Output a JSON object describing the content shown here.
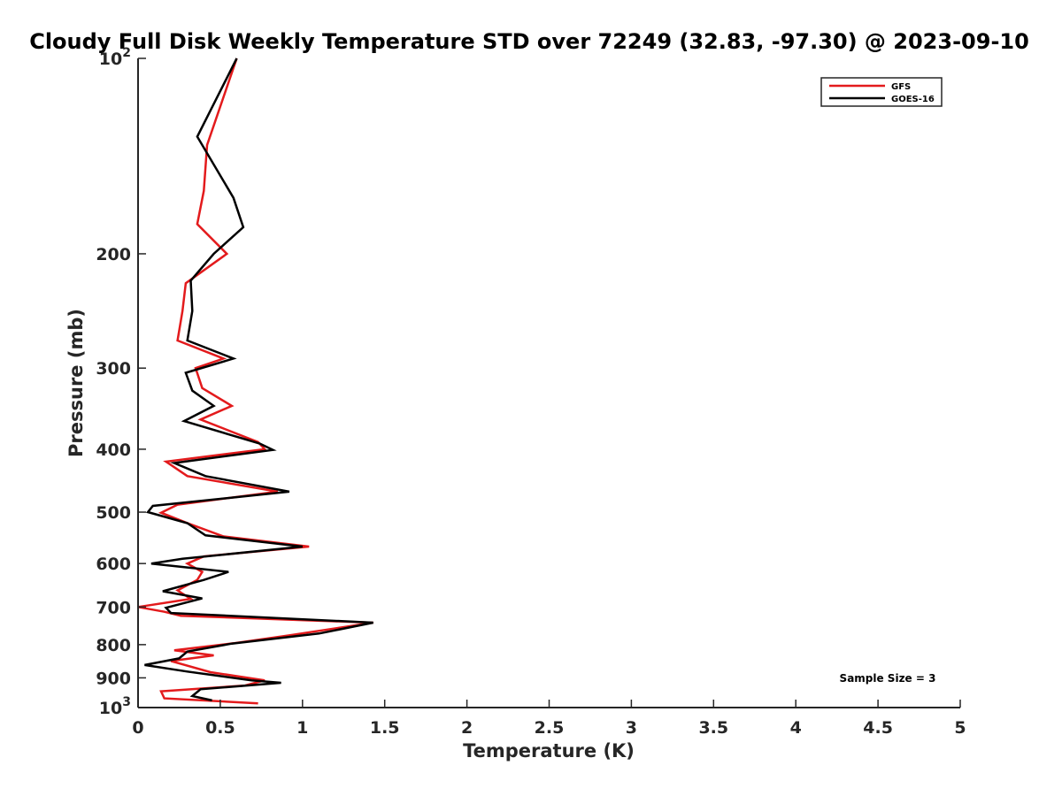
{
  "chart_data": {
    "type": "line",
    "title": "Cloudy Full Disk Weekly Temperature STD over 72249 (32.83, -97.30) @ 2023-09-10",
    "xlabel": "Temperature (K)",
    "ylabel": "Pressure (mb)",
    "xlim": [
      0,
      5
    ],
    "ylim": [
      100,
      1000
    ],
    "yscale": "log",
    "y_reversed": true,
    "grid": false,
    "legend_position": "top-right",
    "x_ticks": [
      {
        "value": 0,
        "label": "0"
      },
      {
        "value": 0.5,
        "label": "0.5"
      },
      {
        "value": 1,
        "label": "1"
      },
      {
        "value": 1.5,
        "label": "1.5"
      },
      {
        "value": 2,
        "label": "2"
      },
      {
        "value": 2.5,
        "label": "2.5"
      },
      {
        "value": 3,
        "label": "3"
      },
      {
        "value": 3.5,
        "label": "3.5"
      },
      {
        "value": 4,
        "label": "4"
      },
      {
        "value": 4.5,
        "label": "4.5"
      },
      {
        "value": 5,
        "label": "5"
      }
    ],
    "y_ticks": [
      {
        "value": 100,
        "base": "10",
        "exp": "2"
      },
      {
        "value": 200,
        "base": "200",
        "exp": ""
      },
      {
        "value": 300,
        "base": "300",
        "exp": ""
      },
      {
        "value": 400,
        "base": "400",
        "exp": ""
      },
      {
        "value": 500,
        "base": "500",
        "exp": ""
      },
      {
        "value": 600,
        "base": "600",
        "exp": ""
      },
      {
        "value": 700,
        "base": "700",
        "exp": ""
      },
      {
        "value": 800,
        "base": "800",
        "exp": ""
      },
      {
        "value": 900,
        "base": "900",
        "exp": ""
      },
      {
        "value": 1000,
        "base": "10",
        "exp": "3"
      }
    ],
    "annotation": "Sample Size = 3",
    "series": [
      {
        "name": "GFS",
        "color": "#e31a1c",
        "points": [
          [
            0.6,
            100
          ],
          [
            0.42,
            136
          ],
          [
            0.4,
            160
          ],
          [
            0.36,
            180
          ],
          [
            0.54,
            200
          ],
          [
            0.29,
            222
          ],
          [
            0.27,
            245
          ],
          [
            0.24,
            272
          ],
          [
            0.52,
            290
          ],
          [
            0.35,
            300
          ],
          [
            0.39,
            322
          ],
          [
            0.57,
            343
          ],
          [
            0.38,
            360
          ],
          [
            0.73,
            390
          ],
          [
            0.77,
            400
          ],
          [
            0.17,
            418
          ],
          [
            0.3,
            440
          ],
          [
            0.85,
            465
          ],
          [
            0.24,
            487
          ],
          [
            0.14,
            501
          ],
          [
            0.31,
            521
          ],
          [
            0.52,
            545
          ],
          [
            1.04,
            565
          ],
          [
            0.4,
            585
          ],
          [
            0.3,
            600
          ],
          [
            0.39,
            618
          ],
          [
            0.36,
            636
          ],
          [
            0.24,
            660
          ],
          [
            0.32,
            680
          ],
          [
            0.0,
            700
          ],
          [
            0.16,
            712
          ],
          [
            0.26,
            722
          ],
          [
            1.43,
            740
          ],
          [
            0.92,
            774
          ],
          [
            0.58,
            796
          ],
          [
            0.22,
            816
          ],
          [
            0.46,
            831
          ],
          [
            0.2,
            848
          ],
          [
            0.44,
            882
          ],
          [
            0.77,
            908
          ],
          [
            0.65,
            925
          ],
          [
            0.14,
            944
          ],
          [
            0.16,
            968
          ],
          [
            0.73,
            985
          ]
        ]
      },
      {
        "name": "GOES-16",
        "color": "#000000",
        "points": [
          [
            0.6,
            100
          ],
          [
            0.36,
            132
          ],
          [
            0.58,
            164
          ],
          [
            0.64,
            182
          ],
          [
            0.46,
            200
          ],
          [
            0.32,
            220
          ],
          [
            0.33,
            245
          ],
          [
            0.3,
            272
          ],
          [
            0.58,
            290
          ],
          [
            0.29,
            305
          ],
          [
            0.33,
            325
          ],
          [
            0.46,
            343
          ],
          [
            0.28,
            362
          ],
          [
            0.74,
            392
          ],
          [
            0.82,
            401
          ],
          [
            0.22,
            420
          ],
          [
            0.41,
            440
          ],
          [
            0.92,
            465
          ],
          [
            0.09,
            489
          ],
          [
            0.06,
            500
          ],
          [
            0.3,
            520
          ],
          [
            0.41,
            543
          ],
          [
            1.0,
            565
          ],
          [
            0.27,
            590
          ],
          [
            0.08,
            600
          ],
          [
            0.55,
            618
          ],
          [
            0.4,
            636
          ],
          [
            0.15,
            662
          ],
          [
            0.39,
            679
          ],
          [
            0.17,
            702
          ],
          [
            0.2,
            715
          ],
          [
            1.43,
            740
          ],
          [
            1.1,
            769
          ],
          [
            0.57,
            797
          ],
          [
            0.3,
            820
          ],
          [
            0.25,
            840
          ],
          [
            0.04,
            860
          ],
          [
            0.3,
            880
          ],
          [
            0.69,
            908
          ],
          [
            0.87,
            916
          ],
          [
            0.38,
            937
          ],
          [
            0.33,
            960
          ],
          [
            0.45,
            975
          ]
        ]
      }
    ]
  }
}
